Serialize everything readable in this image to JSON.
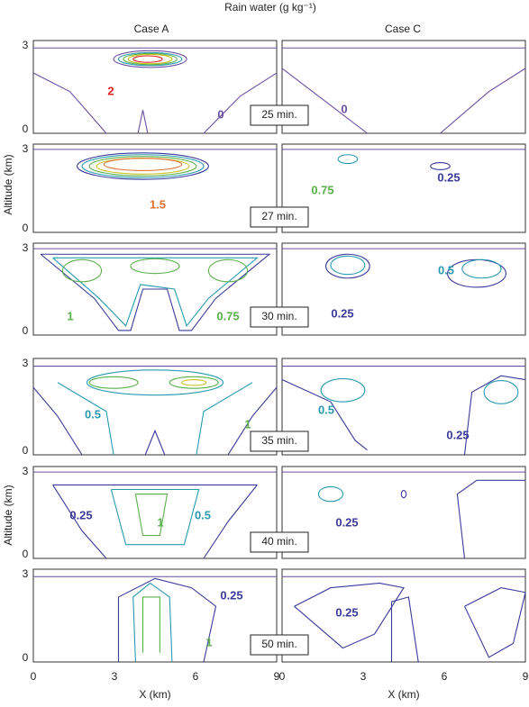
{
  "title": "Rain water (g kg⁻¹)",
  "columns": [
    "Case A",
    "Case C"
  ],
  "y_axis_label": "Altitude (km)",
  "y_ticks": [
    "3",
    "0"
  ],
  "x_ticks": [
    "0",
    "3",
    "6",
    "9"
  ],
  "x_axis_label": "X (km)",
  "panels": [
    {
      "time": "25 min.",
      "case_a_labels": [
        "2",
        "0"
      ],
      "case_c_labels": [
        "0"
      ]
    },
    {
      "time": "27 min.",
      "case_a_labels": [
        "1.5"
      ],
      "case_c_labels": [
        "0.75",
        "0.25"
      ]
    },
    {
      "time": "30 min.",
      "case_a_labels": [
        "1",
        "0.75"
      ],
      "case_c_labels": [
        "0.5",
        "0.25"
      ]
    },
    {
      "time": "35 min.",
      "case_a_labels": [
        "1",
        "0.5"
      ],
      "case_c_labels": [
        "0.5",
        "0.25"
      ]
    },
    {
      "time": "40 min.",
      "case_a_labels": [
        "0.25",
        "1",
        "0.5"
      ],
      "case_c_labels": [
        "0.25"
      ]
    },
    {
      "time": "50 min.",
      "case_a_labels": [
        "0.25",
        "1"
      ],
      "case_c_labels": [
        "0.25"
      ]
    }
  ]
}
